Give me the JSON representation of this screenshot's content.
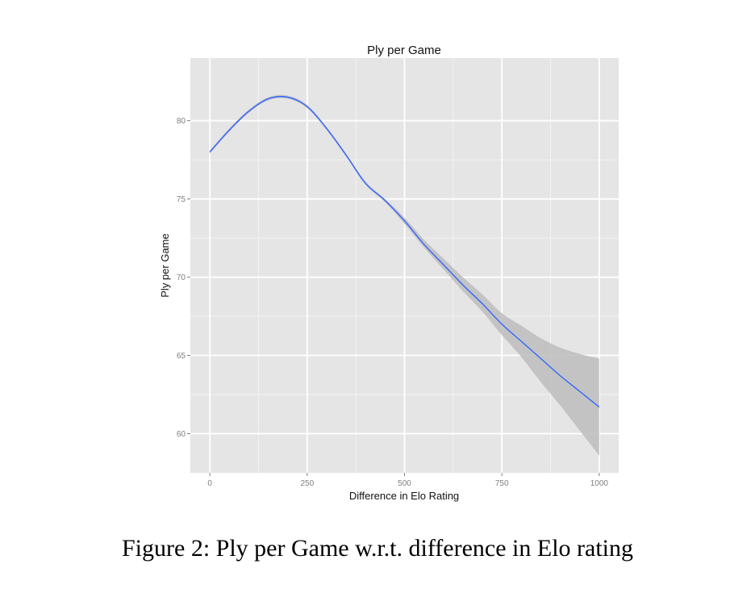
{
  "caption": "Figure 2: Ply per Game w.r.t. difference in Elo rating",
  "colors": {
    "panel": "#e5e5e5",
    "grid_major": "#ffffff",
    "grid_minor": "#f2f2f2",
    "line": "#3366ff",
    "ribbon": "#bdbdbd"
  },
  "chart_data": {
    "type": "line",
    "title": "Ply per Game",
    "xlabel": "Difference in Elo Rating",
    "ylabel": "Ply per Game",
    "xlim": [
      -50,
      1050
    ],
    "ylim": [
      57.5,
      84.0
    ],
    "x_ticks": [
      0,
      250,
      500,
      750,
      1000
    ],
    "y_ticks": [
      60,
      65,
      70,
      75,
      80
    ],
    "grid": true,
    "series": [
      {
        "x": [
          0,
          50,
          100,
          150,
          200,
          250,
          300,
          350,
          400,
          450,
          500,
          550,
          600,
          650,
          700,
          750,
          800,
          850,
          900,
          950,
          1000
        ],
        "y": [
          78.0,
          79.4,
          80.6,
          81.4,
          81.5,
          80.9,
          79.5,
          77.8,
          76.0,
          74.9,
          73.6,
          72.1,
          70.8,
          69.5,
          68.3,
          67.0,
          65.9,
          64.8,
          63.7,
          62.7,
          61.7
        ],
        "lower": [
          77.9,
          79.3,
          80.5,
          81.3,
          81.4,
          80.8,
          79.4,
          77.7,
          75.9,
          74.8,
          73.4,
          71.9,
          70.5,
          69.1,
          67.8,
          66.3,
          64.9,
          63.3,
          61.8,
          60.2,
          58.6
        ],
        "upper": [
          78.1,
          79.5,
          80.7,
          81.5,
          81.6,
          81.0,
          79.6,
          77.9,
          76.1,
          75.0,
          73.8,
          72.4,
          71.2,
          70.0,
          68.9,
          67.7,
          66.9,
          66.1,
          65.5,
          65.1,
          64.8
        ]
      }
    ]
  }
}
